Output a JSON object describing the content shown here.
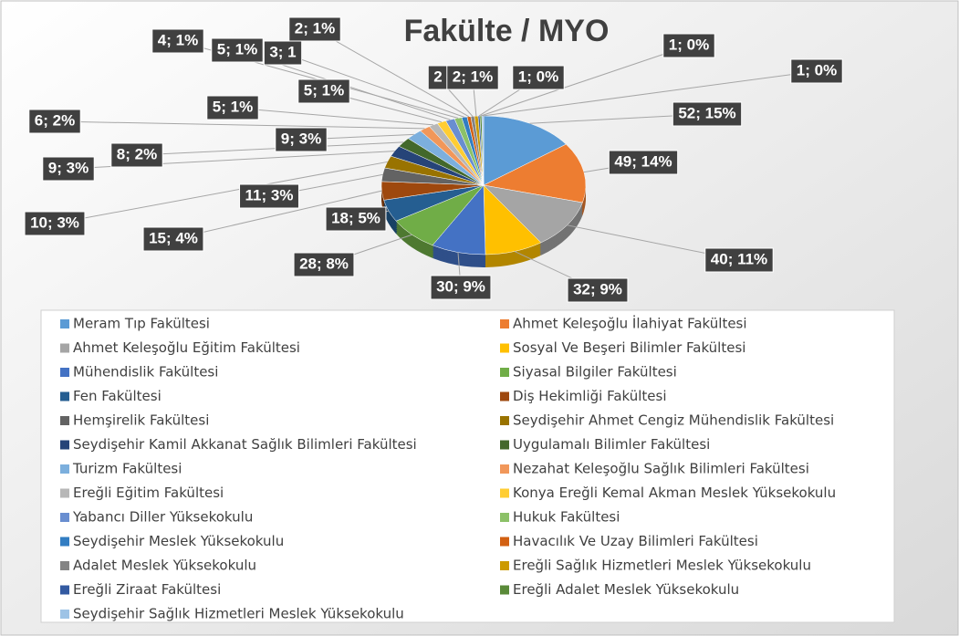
{
  "chart_data": {
    "type": "pie",
    "title": "Fakülte / MYO",
    "categories": [
      "Meram Tıp Fakültesi",
      "Ahmet Keleşoğlu İlahiyat Fakültesi",
      "Ahmet Keleşoğlu Eğitim Fakültesi",
      "Sosyal Ve Beşeri Bilimler Fakültesi",
      "Mühendislik Fakültesi",
      "Siyasal Bilgiler Fakültesi",
      "Fen Fakültesi",
      "Diş Hekimliği Fakültesi",
      "Hemşirelik Fakültesi",
      "Seydişehir Ahmet Cengiz Mühendislik Fakültesi",
      "Seydişehir Kamil Akkanat Sağlık Bilimleri Fakültesi",
      "Uygulamalı Bilimler Fakültesi",
      "Turizm Fakültesi",
      "Nezahat Keleşoğlu Sağlık Bilimleri Fakültesi",
      "Ereğli Eğitim Fakültesi",
      "Konya Ereğli Kemal Akman Meslek Yüksekokulu",
      "Yabancı Diller Yüksekokulu",
      "Hukuk Fakültesi",
      "Seydişehir Meslek Yüksekokulu",
      "Havacılık Ve Uzay Bilimleri Fakültesi",
      "Adalet Meslek Yüksekokulu",
      "Ereğli Sağlık Hizmetleri Meslek Yüksekokulu",
      "Ereğli Ziraat Fakültesi",
      "Ereğli Adalet Meslek Yüksekokulu",
      "Seydişehir Sağlık Hizmetleri Meslek Yüksekokulu"
    ],
    "values": [
      52,
      49,
      40,
      32,
      30,
      28,
      18,
      15,
      11,
      10,
      9,
      8,
      9,
      6,
      5,
      5,
      5,
      4,
      3,
      2,
      2,
      2,
      1,
      1,
      1
    ],
    "value_labels": [
      "52; 15%",
      "49; 14%",
      "40; 11%",
      "32; 9%",
      "30; 9%",
      "28; 8%",
      "18; 5%",
      "15; 4%",
      "11; 3%",
      "10; 3%",
      "9; 3%",
      "8; 2%",
      "9; 3%",
      "6; 2%",
      "5; 1%",
      "5; 1%",
      "5; 1%",
      "4; 1%",
      "3; 1",
      "2; 1%",
      "2",
      "2; 1%",
      "1; 0%",
      "1; 0%",
      "1; 0%"
    ],
    "colors": [
      "#5b9bd5",
      "#ed7d31",
      "#a5a5a5",
      "#ffc000",
      "#4472c4",
      "#70ad47",
      "#255e91",
      "#9e480e",
      "#636363",
      "#997300",
      "#264478",
      "#43682b",
      "#7cafdd",
      "#f1975a",
      "#b7b7b7",
      "#ffcd33",
      "#698ed0",
      "#8cc168",
      "#327dc2",
      "#d26012",
      "#848484",
      "#cc9a00",
      "#335aa1",
      "#5a8a39",
      "#9dc3e6"
    ],
    "legend": "bottom"
  }
}
